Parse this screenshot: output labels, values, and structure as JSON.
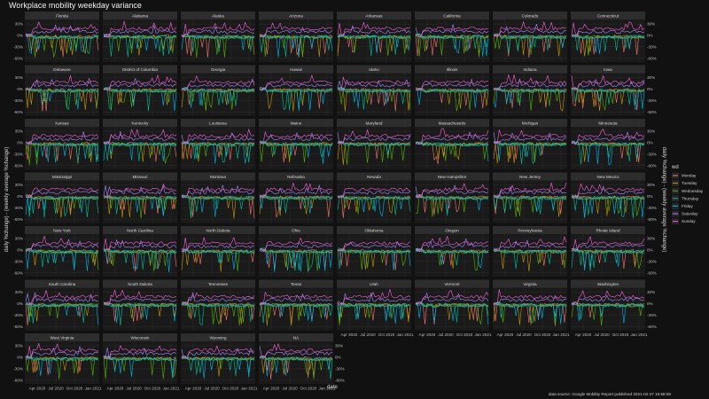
{
  "chart_data": {
    "type": "line",
    "title": "Workplace mobility weekday variance",
    "xlabel": "date",
    "ylabel_left": "daily %change) - (weekly average %change)",
    "ylabel_right": "daily %change) - (weekly average %change)",
    "caption": "data source: Google Mobility Report published 2021-02-27 16:58:09",
    "x_ticks": [
      "Apr 2020",
      "Jul 2020",
      "Oct 2020",
      "Jan 2021"
    ],
    "y_ticks": [
      "30%",
      "0%",
      "-30%",
      "-60%"
    ],
    "y_tick_values": [
      30,
      0,
      -30,
      -60
    ],
    "ylim": [
      -70,
      42
    ],
    "legend_title": "wd",
    "legend_position": "right",
    "series": [
      {
        "name": "Monday",
        "color": "#F8766D",
        "base": -3
      },
      {
        "name": "Tuesday",
        "color": "#C49A00",
        "base": -4
      },
      {
        "name": "Wednesday",
        "color": "#53B400",
        "base": -4
      },
      {
        "name": "Thursday",
        "color": "#00C094",
        "base": -5
      },
      {
        "name": "Friday",
        "color": "#00B6EB",
        "base": -4
      },
      {
        "name": "Saturday",
        "color": "#A58AFF",
        "base": 10
      },
      {
        "name": "Sunday",
        "color": "#FB61D7",
        "base": 18
      }
    ],
    "facets": [
      "Florida",
      "Alabama",
      "Alaska",
      "Arizona",
      "Arkansas",
      "California",
      "Colorado",
      "Connecticut",
      "Delaware",
      "District of Columbia",
      "Georgia",
      "Hawaii",
      "Idaho",
      "Illinois",
      "Indiana",
      "Iowa",
      "Kansas",
      "Kentucky",
      "Louisiana",
      "Maine",
      "Maryland",
      "Massachusetts",
      "Michigan",
      "Minnesota",
      "Mississippi",
      "Missouri",
      "Montana",
      "Nebraska",
      "Nevada",
      "New Hampshire",
      "New Jersey",
      "New Mexico",
      "New York",
      "North Carolina",
      "North Dakota",
      "Ohio",
      "Oklahoma",
      "Oregon",
      "Pennsylvania",
      "Rhode Island",
      "South Carolina",
      "South Dakota",
      "Tennessee",
      "Texas",
      "Utah",
      "Vermont",
      "Virginia",
      "Washington",
      "West Virginia",
      "Wisconsin",
      "Wyoming",
      "NA"
    ],
    "grid": true
  }
}
